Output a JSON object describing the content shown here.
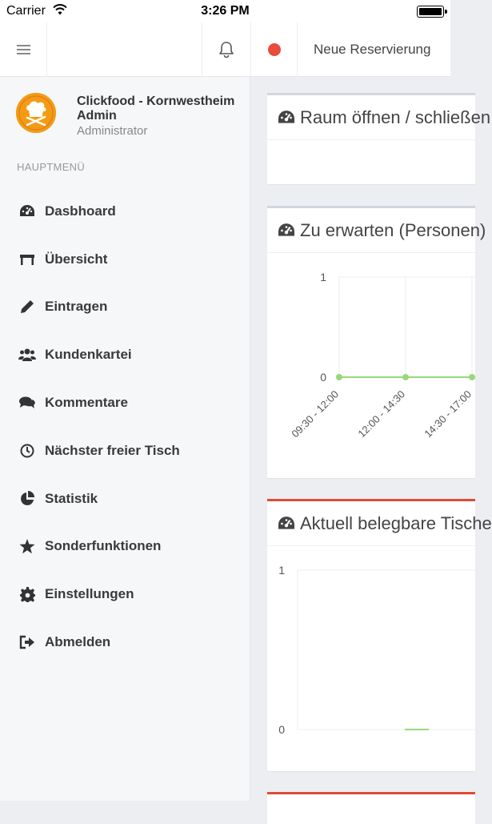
{
  "statusbar": {
    "carrier": "Carrier",
    "time": "3:26 PM"
  },
  "topnav": {
    "new_reservation": "Neue Reservierung"
  },
  "user": {
    "name": "Clickfood - Kornwestheim",
    "name_line2": "Admin",
    "role": "Administrator"
  },
  "menu": {
    "header": "HAUPTMENÜ",
    "items": [
      {
        "label": "Dasbhoard",
        "icon": "dashboard-icon"
      },
      {
        "label": "Übersicht",
        "icon": "table-icon"
      },
      {
        "label": "Eintragen",
        "icon": "pencil-icon"
      },
      {
        "label": "Kundenkartei",
        "icon": "users-icon"
      },
      {
        "label": "Kommentare",
        "icon": "comments-icon"
      },
      {
        "label": "Nächster freier Tisch",
        "icon": "clock-icon"
      },
      {
        "label": "Statistik",
        "icon": "pie-chart-icon"
      },
      {
        "label": "Sonderfunktionen",
        "icon": "star-icon"
      },
      {
        "label": "Einstellungen",
        "icon": "gear-icon"
      },
      {
        "label": "Abmelden",
        "icon": "sign-out-icon"
      }
    ]
  },
  "panels": {
    "p1": {
      "title": "Raum öffnen / schließen"
    },
    "p2": {
      "title": "Zu erwarten (Personen)"
    },
    "p3": {
      "title": "Aktuell belegbare Tische"
    }
  },
  "colors": {
    "accent_red": "#dd4b39",
    "line_green": "#97d97c",
    "avatar_orange": "#f39c12",
    "status_red": "#e84c3d"
  },
  "chart_data": [
    {
      "type": "line",
      "categories": [
        "09:30 - 12:00",
        "12:00 - 14:30",
        "14:30 - 17:00"
      ],
      "series": [
        {
          "values": [
            0,
            0,
            0
          ]
        }
      ],
      "yticks": [
        "0",
        "1"
      ],
      "ylim": [
        0,
        1
      ],
      "grid": true
    },
    {
      "type": "bar",
      "categories": [
        ""
      ],
      "series": [
        {
          "values": [
            0
          ]
        }
      ],
      "yticks": [
        "0",
        "1"
      ],
      "ylim": [
        0,
        1
      ],
      "grid": true
    }
  ]
}
